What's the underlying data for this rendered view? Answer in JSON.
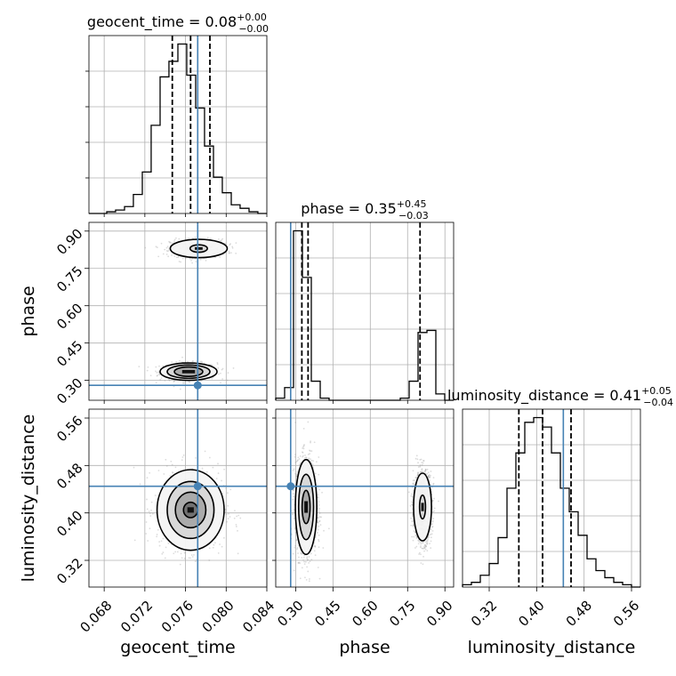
{
  "chart_data": {
    "type": "corner",
    "parameters": [
      "geocent_time",
      "phase",
      "luminosity_distance"
    ],
    "titles": [
      {
        "param": "geocent_time",
        "label": "geocent_time = 0.08",
        "plus": "+0.00",
        "minus": "−0.00"
      },
      {
        "param": "phase",
        "label": "phase = 0.35",
        "plus": "+0.45",
        "minus": "−0.03"
      },
      {
        "param": "luminosity_distance",
        "label": "luminosity_distance = 0.41",
        "plus": "+0.05",
        "minus": "−0.04"
      }
    ],
    "axes": {
      "geocent_time": {
        "range": [
          0.0665,
          0.084
        ],
        "ticks": [
          0.068,
          0.072,
          0.076,
          0.08,
          0.084
        ],
        "tick_labels": [
          "0.068",
          "0.072",
          "0.076",
          "0.080",
          "0.084"
        ]
      },
      "phase": {
        "range": [
          0.22,
          0.935
        ],
        "ticks": [
          0.3,
          0.45,
          0.6,
          0.75,
          0.9
        ],
        "tick_labels": [
          "0.30",
          "0.45",
          "0.60",
          "0.75",
          "0.90"
        ]
      },
      "luminosity_distance": {
        "range": [
          0.275,
          0.575
        ],
        "ticks": [
          0.32,
          0.4,
          0.48,
          0.56
        ],
        "tick_labels": [
          "0.32",
          "0.40",
          "0.48",
          "0.56"
        ]
      }
    },
    "truths": {
      "geocent_time": 0.0772,
      "phase": 0.28,
      "luminosity_distance": 0.445
    },
    "quantiles": {
      "geocent_time": [
        0.0747,
        0.0765,
        0.0784
      ],
      "phase": [
        0.325,
        0.35,
        0.8
      ],
      "luminosity_distance": [
        0.37,
        0.41,
        0.458
      ]
    },
    "histograms": {
      "geocent_time": {
        "edges": [
          0.0665,
          0.06737,
          0.06825,
          0.06912,
          0.07,
          0.07087,
          0.07175,
          0.07262,
          0.0735,
          0.07437,
          0.07525,
          0.07612,
          0.077,
          0.07787,
          0.07875,
          0.07962,
          0.0805,
          0.08137,
          0.08225,
          0.08312,
          0.084
        ],
        "counts": [
          0,
          0,
          1,
          2,
          4,
          11,
          24,
          51,
          79,
          88,
          98,
          80,
          61,
          39,
          21,
          12,
          5,
          3,
          1,
          0
        ]
      },
      "phase": {
        "edges": [
          0.22,
          0.2557,
          0.2915,
          0.3273,
          0.363,
          0.3988,
          0.4345,
          0.4703,
          0.506,
          0.5418,
          0.5775,
          0.6133,
          0.649,
          0.6848,
          0.7205,
          0.7563,
          0.792,
          0.8278,
          0.8635,
          0.8993,
          0.935
        ],
        "counts": [
          1,
          6,
          80,
          58,
          9,
          1,
          0,
          0,
          0,
          0,
          0,
          0,
          0,
          0,
          1,
          9,
          32,
          33,
          3,
          0
        ]
      },
      "luminosity_distance": {
        "edges": [
          0.275,
          0.29,
          0.305,
          0.32,
          0.335,
          0.35,
          0.365,
          0.38,
          0.395,
          0.41,
          0.425,
          0.44,
          0.455,
          0.47,
          0.485,
          0.5,
          0.515,
          0.53,
          0.545,
          0.56,
          0.575
        ],
        "counts": [
          1,
          2,
          5,
          10,
          21,
          42,
          57,
          70,
          72,
          68,
          57,
          42,
          32,
          22,
          12,
          7,
          4,
          2,
          1,
          0
        ]
      }
    },
    "density_2d": [
      {
        "x": "geocent_time",
        "y": "phase",
        "modes": [
          {
            "center": [
              0.0763,
              0.335
            ],
            "levels": [
              [
                0.0028,
                0.035
              ],
              [
                0.0021,
                0.027
              ],
              [
                0.0014,
                0.019
              ]
            ]
          },
          {
            "center": [
              0.0773,
              0.83
            ],
            "levels": [
              [
                0.0028,
                0.037
              ],
              [
                0.00085,
                0.015
              ]
            ]
          }
        ]
      },
      {
        "x": "geocent_time",
        "y": "luminosity_distance",
        "modes": [
          {
            "center": [
              0.0765,
              0.405
            ],
            "levels": [
              [
                0.0033,
                0.068
              ],
              [
                0.0023,
                0.048
              ],
              [
                0.0015,
                0.03
              ],
              [
                0.0007,
                0.013
              ]
            ]
          }
        ]
      },
      {
        "x": "phase",
        "y": "luminosity_distance",
        "modes": [
          {
            "center": [
              0.342,
              0.41
            ],
            "levels": [
              [
                0.043,
                0.08
              ],
              [
                0.03,
                0.055
              ],
              [
                0.016,
                0.028
              ]
            ]
          },
          {
            "center": [
              0.81,
              0.41
            ],
            "levels": [
              [
                0.036,
                0.057
              ],
              [
                0.012,
                0.02
              ]
            ]
          }
        ]
      }
    ]
  }
}
